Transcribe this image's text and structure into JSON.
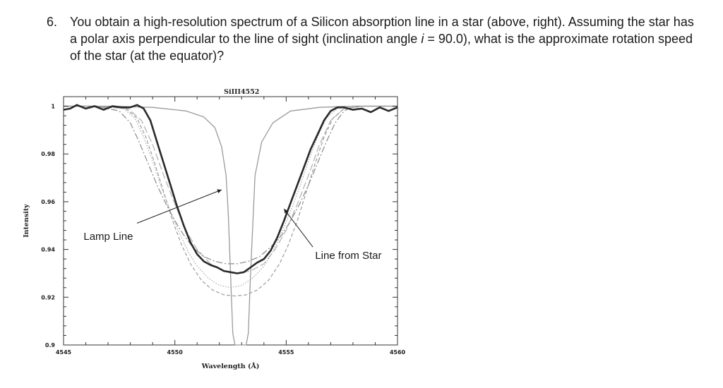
{
  "question": {
    "number": "6.",
    "text_part1": "You obtain a high-resolution spectrum of a Silicon absorption line in a star (above, right).  Assuming the star has a polar axis perpendicular to the line of sight (inclination angle ",
    "italic_symbol": "i",
    "text_part2": " = 90.0), what is the approximate rotation speed of the star (at the equator)?"
  },
  "chart_data": {
    "type": "line",
    "title": "SiIII4552",
    "xlabel": "Wavelength (Å)",
    "ylabel": "Intensity",
    "xlim": [
      4545,
      4560
    ],
    "ylim": [
      0.9,
      1.004
    ],
    "xticks": [
      "4545",
      "4550",
      "4555",
      "4560"
    ],
    "yticks": [
      "0.9",
      "0.92",
      "0.94",
      "0.96",
      "0.98",
      "1"
    ],
    "annotations": [
      {
        "text": "Lamp Line",
        "target": "lamp line",
        "anchor": [
          4545.9,
          0.944
        ],
        "pointer_from": [
          4548.3,
          0.951
        ],
        "pointer_to": [
          4552.1,
          0.965
        ]
      },
      {
        "text": "Line from Star",
        "target": "star line",
        "anchor": [
          4556.3,
          0.936
        ],
        "pointer_from": [
          4556.2,
          0.941
        ],
        "pointer_to": [
          4554.9,
          0.957
        ]
      }
    ],
    "series": [
      {
        "style": "thick-solid",
        "color": "#2a2a2a",
        "x": [
          4545.0,
          4545.3,
          4545.6,
          4546.0,
          4546.4,
          4546.8,
          4547.2,
          4547.6,
          4548.0,
          4548.3,
          4548.6,
          4548.9,
          4549.2,
          4549.5,
          4549.8,
          4550.1,
          4550.4,
          4550.7,
          4551.0,
          4551.3,
          4551.6,
          4551.9,
          4552.2,
          4552.5,
          4552.8,
          4553.1,
          4553.4,
          4553.7,
          4554.0,
          4554.3,
          4554.6,
          4554.9,
          4555.2,
          4555.5,
          4555.8,
          4556.1,
          4556.4,
          4556.7,
          4557.0,
          4557.3,
          4557.6,
          4558.0,
          4558.4,
          4558.8,
          4559.2,
          4559.6,
          4560.0
        ],
        "y": [
          0.9985,
          0.999,
          1.0005,
          0.999,
          1.0,
          0.9985,
          1.0,
          0.9995,
          0.9995,
          1.0005,
          0.999,
          0.994,
          0.985,
          0.976,
          0.967,
          0.958,
          0.95,
          0.943,
          0.938,
          0.935,
          0.9335,
          0.9325,
          0.931,
          0.9305,
          0.93,
          0.9305,
          0.9325,
          0.9345,
          0.936,
          0.9395,
          0.945,
          0.952,
          0.9595,
          0.967,
          0.9745,
          0.982,
          0.988,
          0.994,
          0.998,
          0.9995,
          0.9995,
          0.9985,
          0.999,
          0.9975,
          0.9995,
          0.998,
          0.9995
        ]
      },
      {
        "style": "solid-thin",
        "color": "#9a9a9a",
        "x": [
          4545.0,
          4547.0,
          4549.0,
          4550.5,
          4551.3,
          4551.8,
          4552.1,
          4552.3,
          4552.4,
          4552.5,
          4552.6,
          4552.7,
          4552.8,
          4552.9,
          4553.0,
          4553.1,
          4553.2,
          4553.3,
          4553.4,
          4553.6,
          4553.9,
          4554.4,
          4555.2,
          4556.5,
          4558.0,
          4560.0
        ],
        "y": [
          1.0,
          1.0,
          0.9995,
          0.998,
          0.9955,
          0.991,
          0.983,
          0.971,
          0.955,
          0.93,
          0.905,
          0.9,
          0.9,
          0.9,
          0.9,
          0.9,
          0.9,
          0.905,
          0.93,
          0.971,
          0.985,
          0.993,
          0.998,
          0.9995,
          1.0,
          1.0
        ]
      },
      {
        "style": "dash-dot",
        "color": "#8a8a8a",
        "x": [
          4545.0,
          4546.5,
          4547.5,
          4548.0,
          4548.4,
          4548.8,
          4549.2,
          4549.6,
          4550.0,
          4550.4,
          4550.8,
          4551.3,
          4551.8,
          4552.3,
          4552.8,
          4553.3,
          4553.8,
          4554.3,
          4554.8,
          4555.2,
          4555.6,
          4556.0,
          4556.4,
          4556.8,
          4557.2,
          4557.6,
          4558.0,
          4559.0,
          4560.0
        ],
        "y": [
          1.0,
          1.0,
          0.998,
          0.993,
          0.985,
          0.976,
          0.967,
          0.959,
          0.952,
          0.946,
          0.941,
          0.937,
          0.935,
          0.934,
          0.934,
          0.935,
          0.937,
          0.941,
          0.946,
          0.952,
          0.959,
          0.967,
          0.976,
          0.985,
          0.993,
          0.998,
          1.0,
          1.0,
          1.0
        ]
      },
      {
        "style": "dashed",
        "color": "#9c9c9c",
        "x": [
          4545.0,
          4546.5,
          4547.8,
          4548.3,
          4548.7,
          4549.1,
          4549.5,
          4549.9,
          4550.3,
          4550.7,
          4551.2,
          4551.7,
          4552.2,
          4552.7,
          4553.2,
          4553.7,
          4554.2,
          4554.7,
          4555.1,
          4555.5,
          4555.9,
          4556.3,
          4556.7,
          4557.1,
          4557.6,
          4558.5,
          4560.0
        ],
        "y": [
          1.0,
          1.0,
          0.999,
          0.995,
          0.987,
          0.976,
          0.964,
          0.952,
          0.942,
          0.934,
          0.927,
          0.923,
          0.921,
          0.9205,
          0.921,
          0.923,
          0.927,
          0.934,
          0.942,
          0.952,
          0.964,
          0.976,
          0.987,
          0.995,
          0.999,
          1.0,
          1.0
        ]
      },
      {
        "style": "dotted",
        "color": "#a8a8a8",
        "x": [
          4545.0,
          4546.5,
          4547.7,
          4548.2,
          4548.6,
          4549.0,
          4549.4,
          4549.8,
          4550.2,
          4550.6,
          4551.0,
          4551.5,
          4552.0,
          4552.5,
          4553.0,
          4553.5,
          4554.0,
          4554.4,
          4554.8,
          4555.2,
          4555.6,
          4556.0,
          4556.4,
          4556.8,
          4557.3,
          4558.0,
          4560.0
        ],
        "y": [
          1.0,
          1.0,
          0.999,
          0.995,
          0.987,
          0.977,
          0.966,
          0.956,
          0.947,
          0.939,
          0.933,
          0.928,
          0.925,
          0.924,
          0.925,
          0.928,
          0.933,
          0.939,
          0.947,
          0.956,
          0.966,
          0.977,
          0.987,
          0.995,
          0.999,
          1.0,
          1.0
        ]
      },
      {
        "style": "long-dash",
        "color": "#b0b0b0",
        "x": [
          4545.0,
          4546.5,
          4547.9,
          4548.5,
          4549.0,
          4549.5,
          4550.0,
          4550.5,
          4551.0,
          4551.6,
          4552.2,
          4552.8,
          4553.4,
          4554.0,
          4554.5,
          4555.0,
          4555.5,
          4556.0,
          4556.5,
          4557.0,
          4557.6,
          4558.5,
          4560.0
        ],
        "y": [
          1.0,
          1.0,
          0.999,
          0.994,
          0.984,
          0.971,
          0.959,
          0.948,
          0.94,
          0.934,
          0.931,
          0.93,
          0.931,
          0.934,
          0.94,
          0.948,
          0.959,
          0.971,
          0.984,
          0.994,
          0.999,
          1.0,
          1.0
        ]
      }
    ]
  }
}
